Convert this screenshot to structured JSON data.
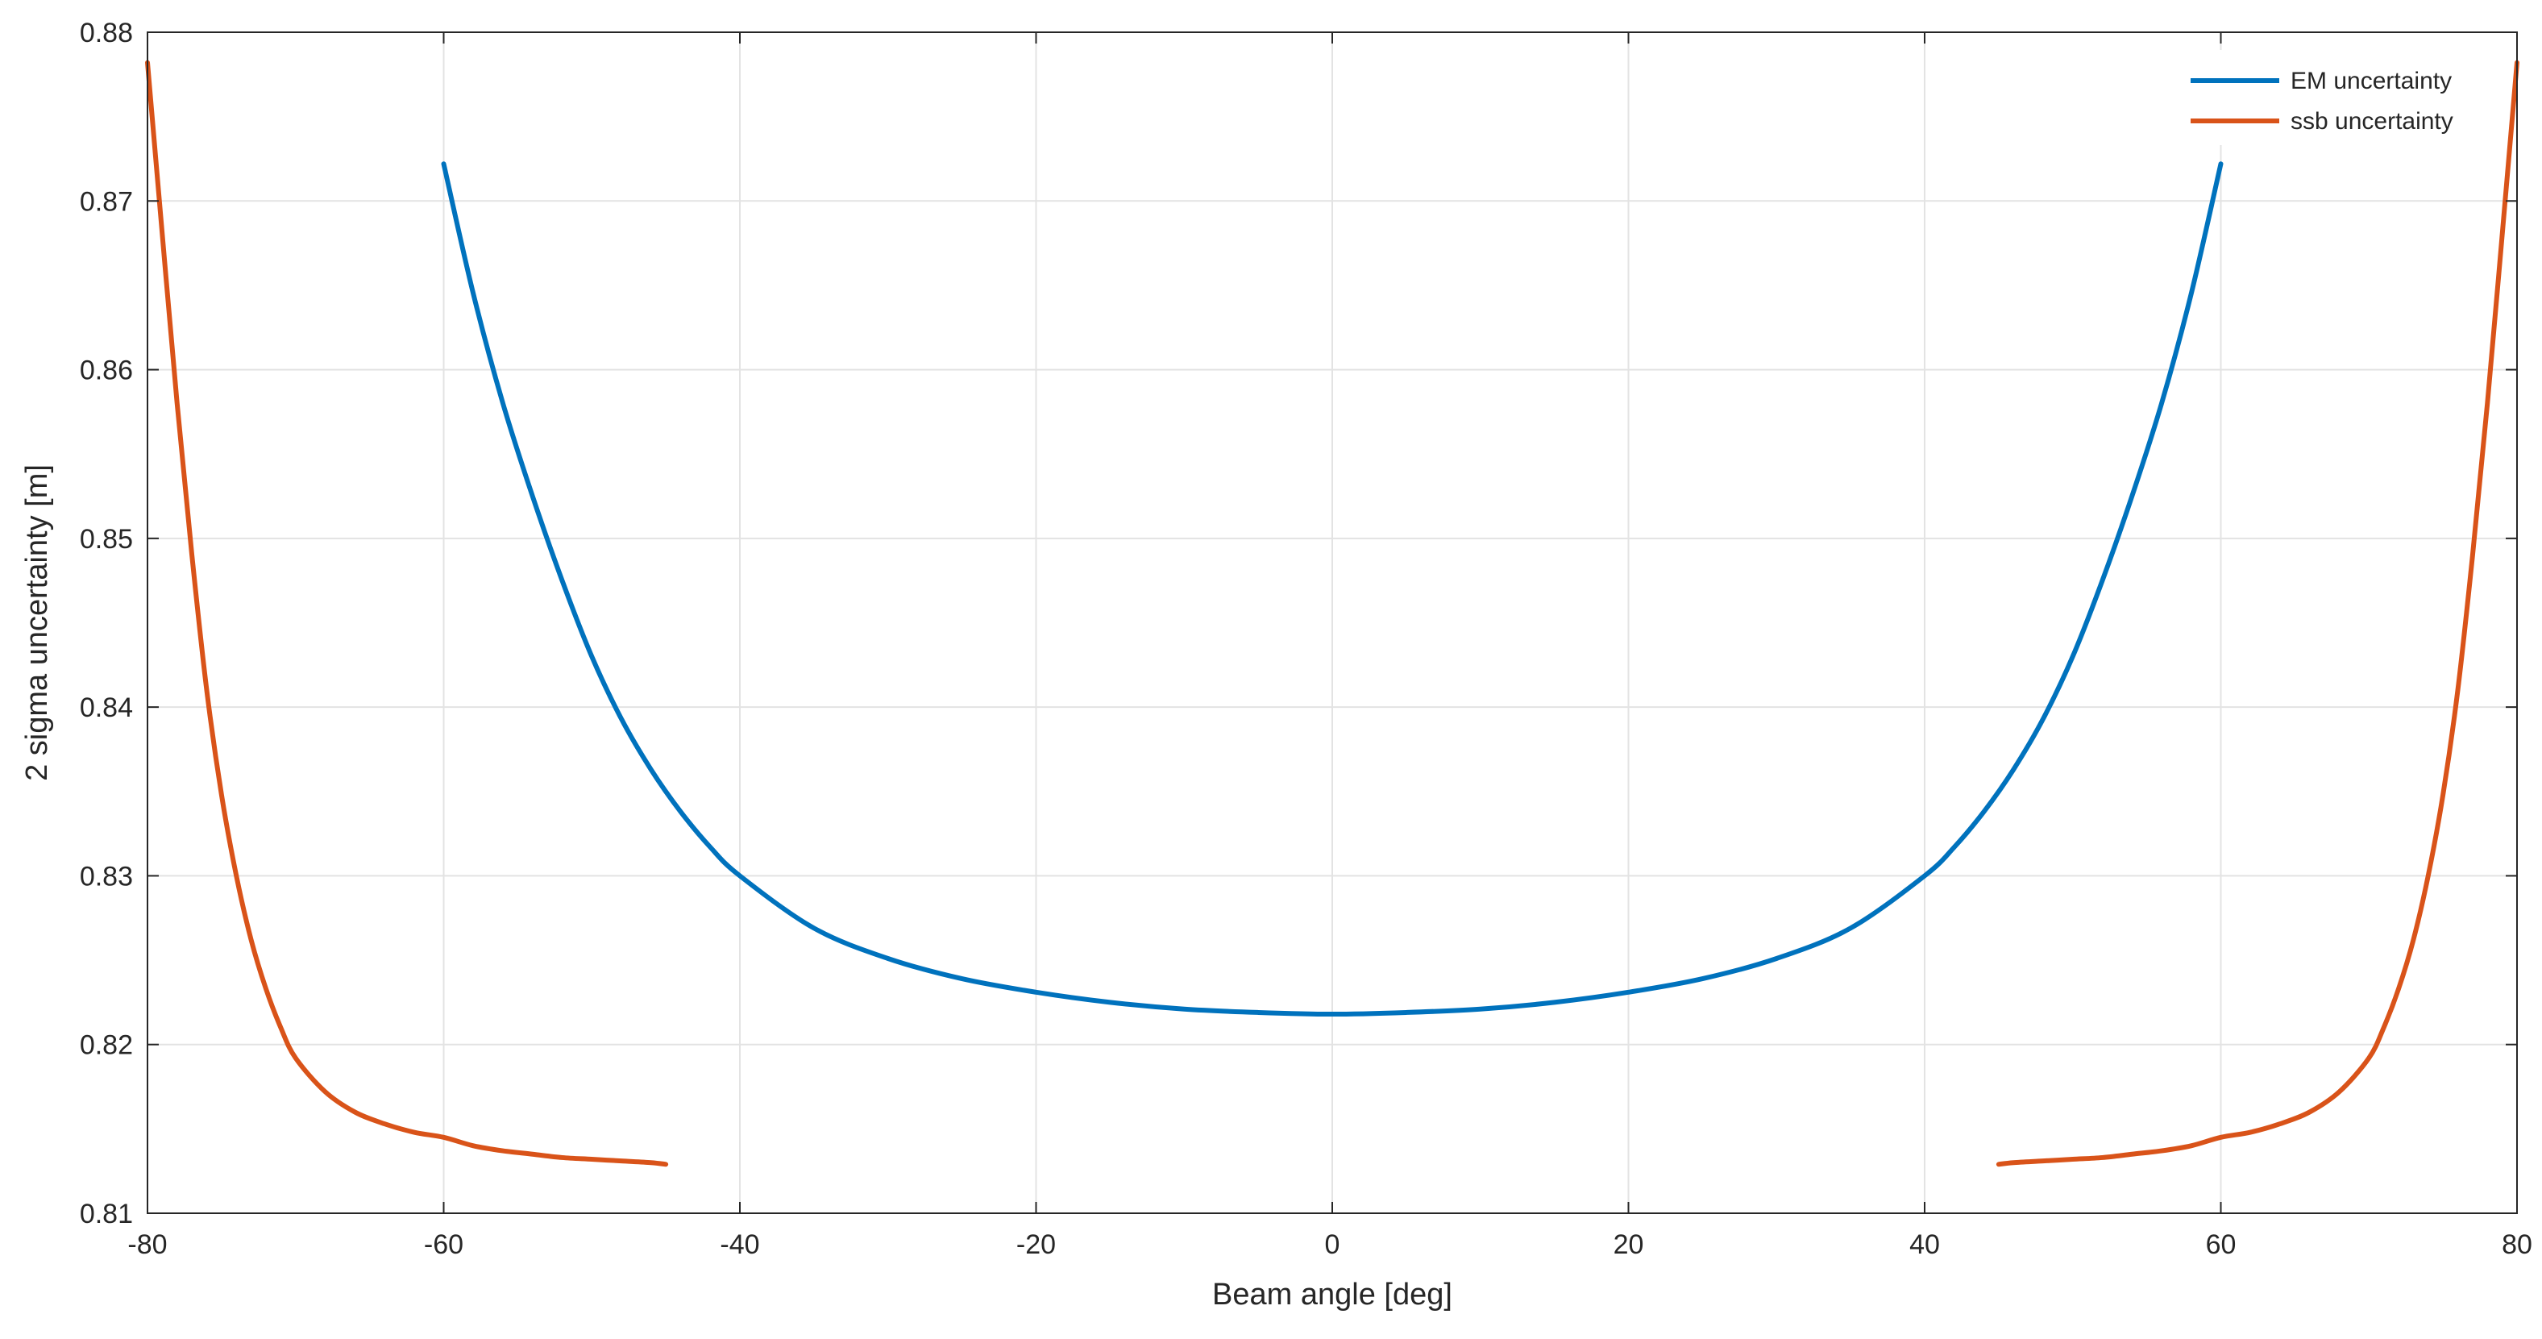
{
  "chart_data": {
    "type": "line",
    "title": "",
    "xlabel": "Beam angle [deg]",
    "ylabel": "2 sigma uncertainty [m]",
    "xlim": [
      -80,
      80
    ],
    "ylim": [
      0.81,
      0.88
    ],
    "xticks": [
      -80,
      -60,
      -40,
      -20,
      0,
      20,
      40,
      60,
      80
    ],
    "xtick_labels": [
      "-80",
      "-60",
      "-40",
      "-20",
      "0",
      "20",
      "40",
      "60",
      "80"
    ],
    "yticks": [
      0.81,
      0.82,
      0.83,
      0.84,
      0.85,
      0.86,
      0.87,
      0.88
    ],
    "ytick_labels": [
      "0.81",
      "0.82",
      "0.83",
      "0.84",
      "0.85",
      "0.86",
      "0.87",
      "0.88"
    ],
    "grid": true,
    "legend_position": "top-right",
    "series": [
      {
        "name": "EM uncertainty",
        "color": "#0072BD",
        "x": [
          -60,
          -58,
          -56,
          -54,
          -52,
          -50,
          -48,
          -46,
          -44,
          -42,
          -40,
          -35,
          -30,
          -25,
          -20,
          -15,
          -10,
          -5,
          0,
          5,
          10,
          15,
          20,
          25,
          30,
          35,
          40,
          42,
          44,
          46,
          48,
          50,
          52,
          54,
          56,
          58,
          60
        ],
        "y": [
          0.8722,
          0.8645,
          0.858,
          0.8525,
          0.8475,
          0.843,
          0.8393,
          0.8363,
          0.8338,
          0.8317,
          0.83,
          0.8269,
          0.8251,
          0.8239,
          0.8231,
          0.8225,
          0.8221,
          0.8219,
          0.8218,
          0.8219,
          0.8221,
          0.8225,
          0.8231,
          0.8239,
          0.8251,
          0.8269,
          0.83,
          0.8317,
          0.8338,
          0.8363,
          0.8393,
          0.843,
          0.8475,
          0.8525,
          0.858,
          0.8645,
          0.8722
        ]
      },
      {
        "name": "ssb uncertainty",
        "color": "#D95319",
        "x": [
          -80,
          -79,
          -78,
          -77,
          -76,
          -75,
          -74,
          -73,
          -72,
          -71,
          -70,
          -68,
          -66,
          -64,
          -62,
          -60,
          -58,
          -56,
          -54,
          -52,
          -50,
          -48,
          -46,
          -45
        ],
        "y": [
          0.8782,
          0.868,
          0.858,
          0.849,
          0.841,
          0.8348,
          0.83,
          0.8262,
          0.8233,
          0.821,
          0.8192,
          0.8172,
          0.816,
          0.8153,
          0.8148,
          0.8145,
          0.814,
          0.8137,
          0.8135,
          0.8133,
          0.8132,
          0.8131,
          0.813,
          0.8129
        ]
      },
      {
        "name": "ssb uncertainty",
        "color": "#D95319",
        "x": [
          45,
          46,
          48,
          50,
          52,
          54,
          56,
          58,
          60,
          62,
          64,
          66,
          68,
          70,
          71,
          72,
          73,
          74,
          75,
          76,
          77,
          78,
          79,
          80
        ],
        "y": [
          0.8129,
          0.813,
          0.8131,
          0.8132,
          0.8133,
          0.8135,
          0.8137,
          0.814,
          0.8145,
          0.8148,
          0.8153,
          0.816,
          0.8172,
          0.8192,
          0.821,
          0.8233,
          0.8262,
          0.83,
          0.8348,
          0.841,
          0.849,
          0.858,
          0.868,
          0.8782
        ]
      }
    ]
  }
}
